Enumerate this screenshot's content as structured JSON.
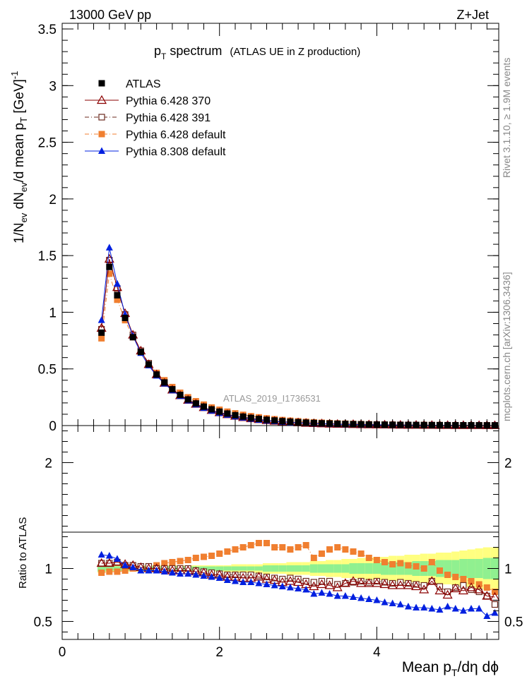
{
  "header": {
    "left": "13000 GeV pp",
    "right": "Z+Jet"
  },
  "plot_title": {
    "main": "p",
    "main_sub": "T",
    "main_rest": " spectrum",
    "detail": "(ATLAS UE in Z production)"
  },
  "side_labels": {
    "rivet": "Rivet 3.1.10, ≥ 1.9M events",
    "mcplots": "mcplots.cern.ch [arXiv:1306.3436]"
  },
  "watermark": "ATLAS_2019_I1736531",
  "axes": {
    "ylabel_main": "1/N_ev dN_ev/d mean p_T [GeV]^-1",
    "ylabel_ratio": "Ratio to ATLAS",
    "xlabel": "Mean p_T/dη dϕ",
    "main_yticks": [
      "0",
      "0.5",
      "1",
      "1.5",
      "2",
      "2.5",
      "3",
      "3.5"
    ],
    "ratio_yticks": [
      "0.5",
      "1",
      "2"
    ],
    "xticks": [
      "0",
      "2",
      "4"
    ]
  },
  "legend": [
    {
      "label": "ATLAS",
      "color": "#000000",
      "marker": "filled-square",
      "line": "none"
    },
    {
      "label": "Pythia 6.428 370",
      "color": "#8b0000",
      "marker": "open-triangle",
      "line": "solid"
    },
    {
      "label": "Pythia 6.428 391",
      "color": "#6b2a1e",
      "marker": "open-square",
      "line": "dash-dot"
    },
    {
      "label": "Pythia 6.428 default",
      "color": "#f07f30",
      "marker": "filled-square",
      "line": "dash-dot"
    },
    {
      "label": "Pythia 8.308 default",
      "color": "#0020e0",
      "marker": "filled-triangle",
      "line": "solid"
    }
  ],
  "chart_data": [
    {
      "type": "line",
      "panel": "main",
      "title": "p_T spectrum (ATLAS UE in Z production)",
      "xlabel": "Mean p_T/dη dϕ",
      "ylabel": "1/N_ev dN_ev/d mean p_T [GeV]^-1",
      "xlim": [
        0,
        5.55
      ],
      "ylim": [
        0,
        3.55
      ],
      "x": [
        0.5,
        0.6,
        0.7,
        0.8,
        0.9,
        1.0,
        1.1,
        1.2,
        1.3,
        1.4,
        1.5,
        1.6,
        1.7,
        1.8,
        1.9,
        2.0,
        2.1,
        2.2,
        2.3,
        2.4,
        2.5,
        2.6,
        2.7,
        2.8,
        2.9,
        3.0,
        3.1,
        3.2,
        3.3,
        3.4,
        3.5,
        3.6,
        3.7,
        3.8,
        3.9,
        4.0,
        4.1,
        4.2,
        4.3,
        4.4,
        4.5,
        4.6,
        4.7,
        4.8,
        4.9,
        5.0,
        5.1,
        5.2,
        5.3,
        5.4,
        5.5
      ],
      "series": [
        {
          "name": "ATLAS",
          "values": [
            0.82,
            1.4,
            1.15,
            0.95,
            0.78,
            0.65,
            0.54,
            0.45,
            0.38,
            0.32,
            0.27,
            0.23,
            0.195,
            0.167,
            0.143,
            0.123,
            0.106,
            0.091,
            0.079,
            0.068,
            0.059,
            0.051,
            0.045,
            0.039,
            0.034,
            0.03,
            0.026,
            0.023,
            0.02,
            0.018,
            0.016,
            0.014,
            0.0125,
            0.011,
            0.0098,
            0.0087,
            0.0078,
            0.007,
            0.0062,
            0.0056,
            0.005,
            0.0045,
            0.004,
            0.0036,
            0.0033,
            0.003,
            0.0027,
            0.0024,
            0.0022,
            0.002,
            0.0018
          ]
        },
        {
          "name": "Pythia 6.428 370",
          "values": [
            0.86,
            1.47,
            1.22,
            0.99,
            0.8,
            0.66,
            0.54,
            0.45,
            0.375,
            0.315,
            0.265,
            0.225,
            0.19,
            0.16,
            0.135,
            0.115,
            0.098,
            0.084,
            0.072,
            0.062,
            0.054,
            0.046,
            0.04,
            0.034,
            0.03,
            0.026,
            0.022,
            0.019,
            0.017,
            0.015,
            0.013,
            0.012,
            0.011,
            0.0095,
            0.0084,
            0.0075,
            0.0066,
            0.0059,
            0.0052,
            0.0047,
            0.0042,
            0.0038,
            0.0034,
            0.003,
            0.0027,
            0.0025,
            0.0022,
            0.002,
            0.0018,
            0.0016,
            0.0014
          ]
        },
        {
          "name": "Pythia 6.428 391",
          "values": [
            0.85,
            1.46,
            1.21,
            0.98,
            0.8,
            0.66,
            0.55,
            0.45,
            0.38,
            0.32,
            0.27,
            0.23,
            0.19,
            0.162,
            0.137,
            0.117,
            0.1,
            0.086,
            0.074,
            0.064,
            0.055,
            0.047,
            0.041,
            0.035,
            0.031,
            0.027,
            0.023,
            0.02,
            0.018,
            0.016,
            0.014,
            0.012,
            0.011,
            0.0097,
            0.0086,
            0.0077,
            0.0068,
            0.006,
            0.0054,
            0.0048,
            0.0043,
            0.0039,
            0.0035,
            0.0031,
            0.0028,
            0.0025,
            0.0022,
            0.002,
            0.0018,
            0.0016,
            0.0014
          ]
        },
        {
          "name": "Pythia 6.428 default",
          "values": [
            0.77,
            1.34,
            1.11,
            0.93,
            0.78,
            0.66,
            0.55,
            0.465,
            0.4,
            0.34,
            0.29,
            0.25,
            0.215,
            0.185,
            0.16,
            0.14,
            0.123,
            0.108,
            0.095,
            0.083,
            0.073,
            0.064,
            0.056,
            0.049,
            0.043,
            0.038,
            0.033,
            0.029,
            0.025,
            0.022,
            0.019,
            0.017,
            0.015,
            0.013,
            0.0115,
            0.0102,
            0.009,
            0.008,
            0.0071,
            0.0063,
            0.0056,
            0.005,
            0.0045,
            0.004,
            0.0036,
            0.0032,
            0.0029,
            0.0026,
            0.0023,
            0.002,
            0.0018
          ]
        },
        {
          "name": "Pythia 8.308 default",
          "values": [
            0.93,
            1.57,
            1.25,
            0.98,
            0.79,
            0.64,
            0.53,
            0.44,
            0.37,
            0.31,
            0.26,
            0.22,
            0.185,
            0.155,
            0.13,
            0.11,
            0.094,
            0.08,
            0.069,
            0.059,
            0.05,
            0.043,
            0.037,
            0.032,
            0.028,
            0.024,
            0.021,
            0.018,
            0.016,
            0.014,
            0.012,
            0.0105,
            0.0092,
            0.0081,
            0.0071,
            0.0062,
            0.0055,
            0.0048,
            0.0042,
            0.0037,
            0.0033,
            0.0029,
            0.0026,
            0.0023,
            0.002,
            0.0018,
            0.0016,
            0.0014,
            0.0012,
            0.0011,
            0.001
          ]
        }
      ]
    },
    {
      "type": "line",
      "panel": "ratio",
      "ylabel": "Ratio to ATLAS",
      "xlabel": "Mean p_T/dη dϕ",
      "xlim": [
        0,
        5.55
      ],
      "ylim": [
        0.33,
        2.35
      ],
      "x": [
        0.5,
        0.6,
        0.7,
        0.8,
        0.9,
        1.0,
        1.1,
        1.2,
        1.3,
        1.4,
        1.5,
        1.6,
        1.7,
        1.8,
        1.9,
        2.0,
        2.1,
        2.2,
        2.3,
        2.4,
        2.5,
        2.6,
        2.7,
        2.8,
        2.9,
        3.0,
        3.1,
        3.2,
        3.3,
        3.4,
        3.5,
        3.6,
        3.7,
        3.8,
        3.9,
        4.0,
        4.1,
        4.2,
        4.3,
        4.4,
        4.5,
        4.6,
        4.7,
        4.8,
        4.9,
        5.0,
        5.1,
        5.2,
        5.3,
        5.4,
        5.5
      ],
      "band_inner": [
        0.03,
        0.02,
        0.02,
        0.02,
        0.02,
        0.02,
        0.02,
        0.02,
        0.02,
        0.02,
        0.02,
        0.02,
        0.02,
        0.02,
        0.02,
        0.02,
        0.02,
        0.02,
        0.02,
        0.02,
        0.02,
        0.03,
        0.03,
        0.03,
        0.03,
        0.03,
        0.03,
        0.04,
        0.04,
        0.04,
        0.04,
        0.04,
        0.05,
        0.05,
        0.05,
        0.05,
        0.06,
        0.06,
        0.06,
        0.06,
        0.07,
        0.07,
        0.07,
        0.08,
        0.08,
        0.08,
        0.09,
        0.09,
        0.09,
        0.1,
        0.1
      ],
      "band_outer": [
        0.04,
        0.03,
        0.03,
        0.03,
        0.03,
        0.03,
        0.03,
        0.03,
        0.03,
        0.03,
        0.03,
        0.03,
        0.03,
        0.03,
        0.03,
        0.03,
        0.03,
        0.04,
        0.04,
        0.04,
        0.04,
        0.05,
        0.05,
        0.05,
        0.06,
        0.06,
        0.06,
        0.07,
        0.07,
        0.08,
        0.08,
        0.09,
        0.09,
        0.1,
        0.1,
        0.11,
        0.11,
        0.12,
        0.12,
        0.13,
        0.13,
        0.14,
        0.14,
        0.15,
        0.15,
        0.16,
        0.17,
        0.18,
        0.19,
        0.2,
        0.2
      ],
      "series": [
        {
          "name": "Pythia 6.428 370",
          "values": [
            1.05,
            1.05,
            1.06,
            1.04,
            1.03,
            1.01,
            1.0,
            1.0,
            0.99,
            0.98,
            0.98,
            0.98,
            0.97,
            0.96,
            0.94,
            0.94,
            0.92,
            0.92,
            0.91,
            0.91,
            0.92,
            0.9,
            0.89,
            0.87,
            0.88,
            0.87,
            0.85,
            0.83,
            0.85,
            0.84,
            0.82,
            0.86,
            0.88,
            0.86,
            0.86,
            0.86,
            0.85,
            0.84,
            0.84,
            0.84,
            0.83,
            0.8,
            0.88,
            0.79,
            0.75,
            0.81,
            0.79,
            0.82,
            0.8,
            0.74,
            0.73
          ]
        },
        {
          "name": "Pythia 6.428 391",
          "values": [
            1.05,
            1.05,
            1.06,
            1.03,
            1.03,
            1.02,
            1.02,
            1.0,
            1.0,
            1.0,
            1.0,
            1.0,
            0.98,
            0.97,
            0.96,
            0.95,
            0.94,
            0.94,
            0.94,
            0.94,
            0.93,
            0.92,
            0.91,
            0.9,
            0.91,
            0.9,
            0.88,
            0.87,
            0.88,
            0.88,
            0.85,
            0.86,
            0.87,
            0.88,
            0.87,
            0.88,
            0.87,
            0.86,
            0.87,
            0.86,
            0.85,
            0.84,
            0.88,
            0.83,
            0.78,
            0.82,
            0.84,
            0.8,
            0.78,
            0.74,
            0.66
          ]
        },
        {
          "name": "Pythia 6.428 default",
          "values": [
            0.96,
            0.97,
            0.97,
            0.98,
            1.0,
            1.02,
            1.02,
            1.03,
            1.05,
            1.06,
            1.07,
            1.08,
            1.1,
            1.11,
            1.12,
            1.14,
            1.16,
            1.18,
            1.2,
            1.22,
            1.24,
            1.24,
            1.2,
            1.2,
            1.18,
            1.2,
            1.22,
            1.1,
            1.14,
            1.18,
            1.2,
            1.18,
            1.16,
            1.14,
            1.1,
            1.08,
            1.06,
            1.04,
            1.05,
            1.03,
            1.02,
            1.0,
            1.06,
            0.98,
            0.94,
            0.92,
            0.9,
            0.88,
            0.85,
            0.82,
            0.78
          ]
        },
        {
          "name": "Pythia 8.308 default",
          "values": [
            1.13,
            1.12,
            1.09,
            1.03,
            1.01,
            0.98,
            0.98,
            0.98,
            0.97,
            0.96,
            0.95,
            0.95,
            0.94,
            0.93,
            0.92,
            0.91,
            0.89,
            0.88,
            0.87,
            0.87,
            0.86,
            0.85,
            0.84,
            0.83,
            0.82,
            0.81,
            0.8,
            0.76,
            0.77,
            0.76,
            0.74,
            0.74,
            0.73,
            0.72,
            0.71,
            0.7,
            0.68,
            0.67,
            0.66,
            0.64,
            0.63,
            0.63,
            0.62,
            0.61,
            0.64,
            0.62,
            0.6,
            0.62,
            0.62,
            0.55,
            0.58
          ]
        }
      ]
    }
  ]
}
